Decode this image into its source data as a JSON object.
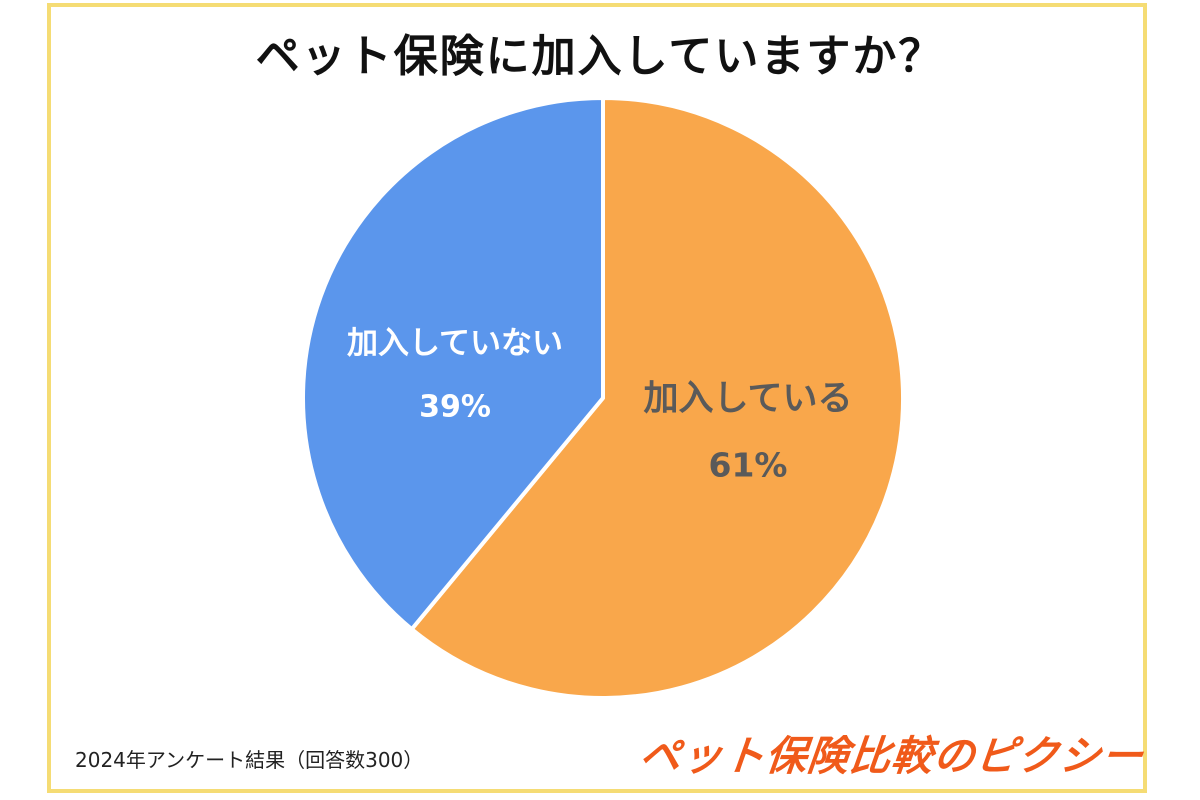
{
  "chart_data": {
    "type": "pie",
    "title": "ペット保険に加入していますか？",
    "slices": [
      {
        "label": "加入している",
        "value": 61,
        "value_label": "61%",
        "color": "#f9a74b",
        "text_color": "#5a5a5a"
      },
      {
        "label": "加入していない",
        "value": 39,
        "value_label": "39%",
        "color": "#5b96ec",
        "text_color": "#ffffff"
      }
    ],
    "start_angle": "12 o'clock",
    "direction": "clockwise",
    "legend": "none"
  },
  "footer": {
    "note": "2024年アンケート結果（回答数300）",
    "brand": "ペット保険比較のピクシー"
  },
  "colors": {
    "frame": "#f5dc74",
    "brand": "#f05a1a"
  }
}
